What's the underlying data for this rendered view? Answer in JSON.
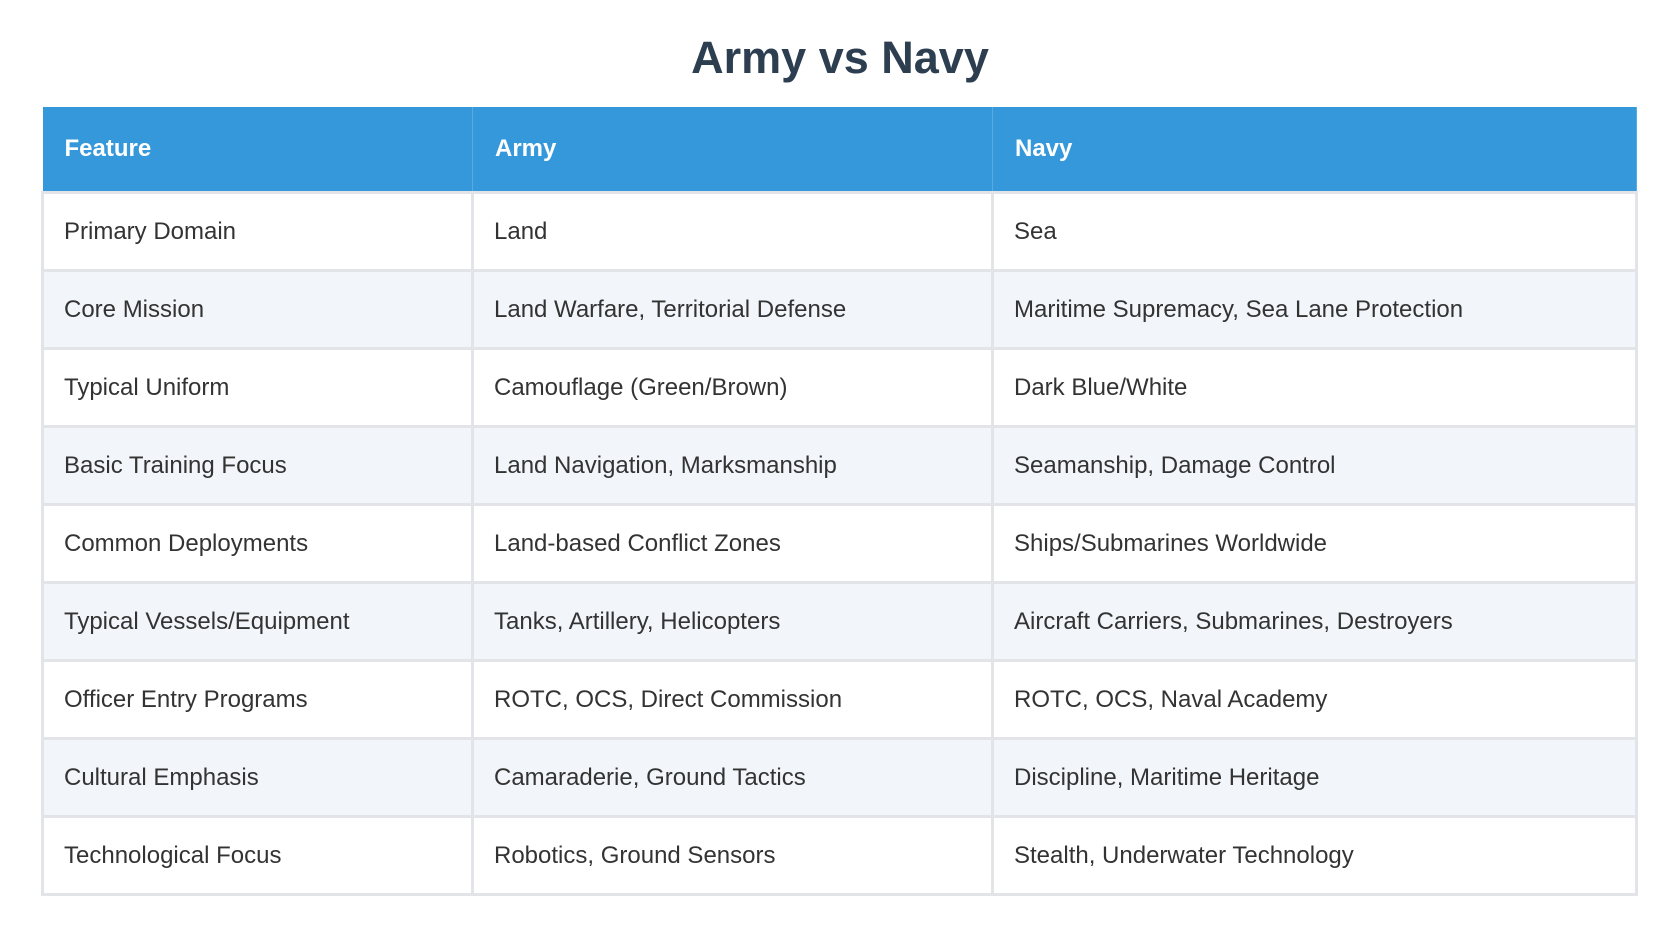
{
  "header": {
    "title": "Army vs Navy"
  },
  "table": {
    "columns": [
      "Feature",
      "Army",
      "Navy"
    ],
    "rows": [
      [
        "Primary Domain",
        "Land",
        "Sea"
      ],
      [
        "Core Mission",
        "Land Warfare, Territorial Defense",
        "Maritime Supremacy, Sea Lane Protection"
      ],
      [
        "Typical Uniform",
        "Camouflage (Green/Brown)",
        "Dark Blue/White"
      ],
      [
        "Basic Training Focus",
        "Land Navigation, Marksmanship",
        "Seamanship, Damage Control"
      ],
      [
        "Common Deployments",
        "Land-based Conflict Zones",
        "Ships/Submarines Worldwide"
      ],
      [
        "Typical Vessels/Equipment",
        "Tanks, Artillery, Helicopters",
        "Aircraft Carriers, Submarines, Destroyers"
      ],
      [
        "Officer Entry Programs",
        "ROTC, OCS, Direct Commission",
        "ROTC, OCS, Naval Academy"
      ],
      [
        "Cultural Emphasis",
        "Camaraderie, Ground Tactics",
        "Discipline, Maritime Heritage"
      ],
      [
        "Technological Focus",
        "Robotics, Ground Sensors",
        "Stealth, Underwater Technology"
      ]
    ]
  }
}
